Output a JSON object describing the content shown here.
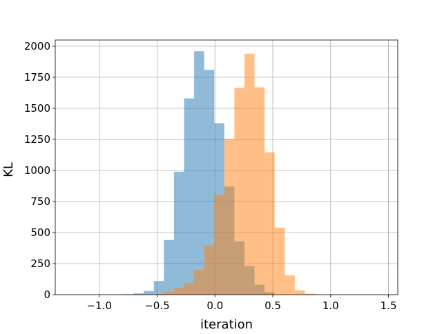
{
  "chart_data": {
    "type": "histogram",
    "title": "",
    "xlabel": "iteration",
    "ylabel": "KL",
    "xlim": [
      -1.38,
      1.58
    ],
    "ylim": [
      0,
      2050
    ],
    "grid": true,
    "x_ticks": [
      -1.0,
      -0.5,
      0.0,
      0.5,
      1.0,
      1.5
    ],
    "x_tick_labels": [
      "−1.0",
      "−0.5",
      "0.0",
      "0.5",
      "1.0",
      "1.5"
    ],
    "y_ticks": [
      0,
      250,
      500,
      750,
      1000,
      1250,
      1500,
      1750,
      2000
    ],
    "y_tick_labels": [
      "0",
      "250",
      "500",
      "750",
      "1000",
      "1250",
      "1500",
      "1750",
      "2000"
    ],
    "bin_width": 0.087,
    "series": [
      {
        "color": "#1f77b4",
        "alpha": 0.5,
        "bin_starts": [
          -1.05,
          -0.963,
          -0.876,
          -0.789,
          -0.702,
          -0.615,
          -0.528,
          -0.441,
          -0.354,
          -0.267,
          -0.18,
          -0.093,
          -0.006,
          0.081,
          0.168,
          0.255,
          0.342,
          0.429
        ],
        "values": [
          1,
          1,
          2,
          4,
          10,
          30,
          110,
          440,
          990,
          1580,
          1960,
          1810,
          1380,
          870,
          430,
          230,
          80,
          20
        ]
      },
      {
        "color": "#ff7f0e",
        "alpha": 0.5,
        "bin_starts": [
          -0.702,
          -0.615,
          -0.528,
          -0.441,
          -0.354,
          -0.267,
          -0.18,
          -0.093,
          -0.006,
          0.081,
          0.168,
          0.255,
          0.342,
          0.429,
          0.516,
          0.603,
          0.69,
          0.777,
          0.864,
          0.951
        ],
        "values": [
          1,
          2,
          5,
          25,
          55,
          95,
          200,
          395,
          805,
          1255,
          1665,
          1940,
          1670,
          1145,
          540,
          155,
          35,
          8,
          3,
          1
        ]
      }
    ]
  }
}
